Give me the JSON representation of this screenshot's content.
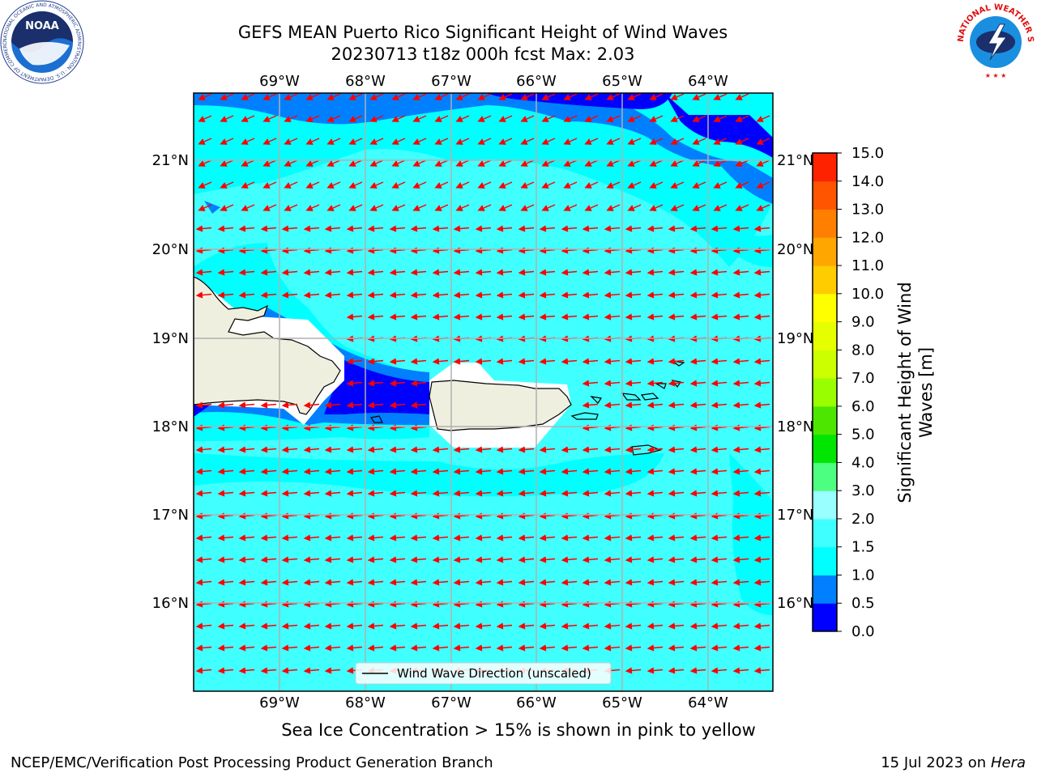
{
  "header": {
    "title_line1": "GEFS MEAN Puerto Rico Significant Height of Wind Waves",
    "title_line2": "20230713 t18z 000h fcst   Max: 2.03"
  },
  "logos": {
    "noaa_text": "NOAA",
    "noaa_ring": "NATIONAL OCEANIC AND ATMOSPHERIC ADMINISTRATION · U.S. DEPARTMENT OF COMMERCE ·",
    "nws_ring": "NATIONAL WEATHER SERVICE"
  },
  "map": {
    "lon_labels": [
      "69°W",
      "68°W",
      "67°W",
      "66°W",
      "65°W",
      "64°W"
    ],
    "lat_labels": [
      "21°N",
      "20°N",
      "19°N",
      "18°N",
      "17°N",
      "16°N"
    ],
    "legend_label": "Wind Wave Direction (unscaled)",
    "colors": {
      "land": "#efefdf",
      "grid": "#b0b0b0",
      "arrow": "#ff0000",
      "wave_0_05": "#0000ff",
      "wave_05_1": "#0080ff",
      "wave_1_15": "#00ffff",
      "wave_15_2": "#40ffff",
      "wave_2_3": "#99ffff"
    }
  },
  "colorbar": {
    "label_line1": "Significant Height of Wind",
    "label_line2": "Waves [m]",
    "ticks": [
      "0.0",
      "0.5",
      "1.0",
      "1.5",
      "2.0",
      "3.0",
      "4.0",
      "5.0",
      "6.0",
      "7.0",
      "8.0",
      "9.0",
      "10.0",
      "11.0",
      "12.0",
      "13.0",
      "14.0",
      "15.0"
    ],
    "colors": [
      "#0000ff",
      "#0080ff",
      "#00ffff",
      "#40ffff",
      "#99ffff",
      "#4dff80",
      "#00e600",
      "#4de600",
      "#99ff00",
      "#ccff00",
      "#e6ff00",
      "#ffff00",
      "#ffcc00",
      "#ffa600",
      "#ff8000",
      "#ff5500",
      "#ff2200"
    ]
  },
  "footer": {
    "sea_ice_note": "Sea Ice Concentration > 15% is shown in pink to yellow",
    "credit": "NCEP/EMC/Verification Post Processing Product Generation Branch",
    "date": "15 Jul 2023 on ",
    "machine": "Hera"
  }
}
